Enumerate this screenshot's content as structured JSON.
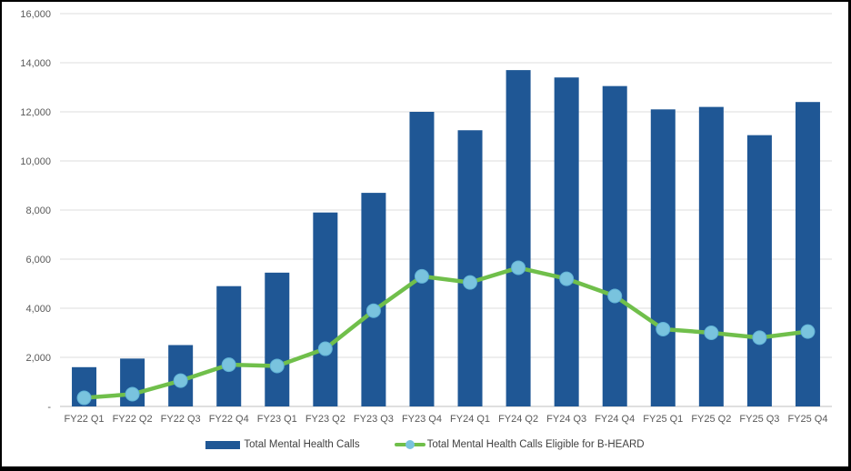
{
  "chart_data": {
    "type": "combo-bar-line",
    "title": "",
    "categories": [
      "FY22 Q1",
      "FY22 Q2",
      "FY22 Q3",
      "FY22 Q4",
      "FY23 Q1",
      "FY23 Q2",
      "FY23 Q3",
      "FY23 Q4",
      "FY24 Q1",
      "FY24 Q2",
      "FY24 Q3",
      "FY24 Q4",
      "FY25 Q1",
      "FY25 Q2",
      "FY25 Q3",
      "FY25 Q4"
    ],
    "series": [
      {
        "name": "Total Mental Health Calls",
        "type": "bar",
        "color": "#1F5795",
        "values": [
          1600,
          1950,
          2500,
          4900,
          5450,
          7900,
          8700,
          12000,
          11250,
          13700,
          13400,
          13050,
          12100,
          12200,
          11050,
          12400
        ]
      },
      {
        "name": "Total Mental Health Calls Eligible for B-HEARD",
        "type": "line",
        "color": "#70BF4B",
        "marker_color": "#79C3DE",
        "marker_stroke": "#5FB2D6",
        "values": [
          350,
          500,
          1050,
          1700,
          1650,
          2350,
          3900,
          5300,
          5050,
          5650,
          5200,
          4500,
          3150,
          3000,
          2800,
          3050
        ]
      }
    ],
    "xlabel": "",
    "ylabel": "",
    "ylim": [
      0,
      16000
    ],
    "ytick_step": 2000,
    "ytick_labels": [
      "-",
      "2,000",
      "4,000",
      "6,000",
      "8,000",
      "10,000",
      "12,000",
      "14,000",
      "16,000"
    ],
    "grid": "horizontal",
    "legend_position": "bottom",
    "axis_label_color": "#595959",
    "gridline_color": "#DEDEDE",
    "axisline_color": "#BFBFBF"
  }
}
